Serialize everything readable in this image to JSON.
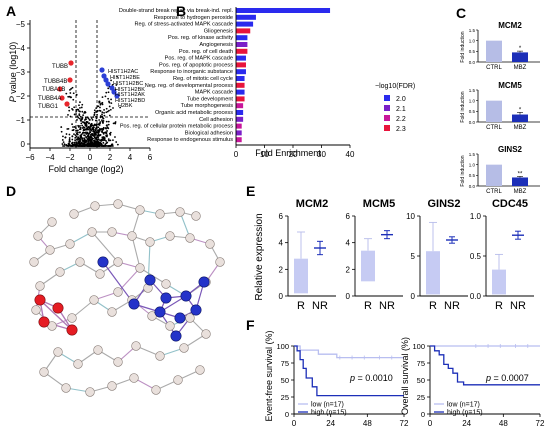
{
  "panels": {
    "A": {
      "letter": "A",
      "ylabel_italic": "P",
      "ylabel_rest": " value (log10)",
      "xlabel": "Fold change (log2)",
      "x_ticks": [
        "−6",
        "−4",
        "−2",
        "0",
        "2",
        "4",
        "6"
      ],
      "y_ticks": [
        "0",
        "−1",
        "−2",
        "−3",
        "−4",
        "−5"
      ],
      "down_labels": [
        "TUBB",
        "TUBB4B",
        "TUBA1B",
        "TUBB4A",
        "TUBG1"
      ],
      "up_labels": [
        "HIST1H2AC",
        "HIST1H2BE",
        "HIST1H2BC",
        "HIST1H2BK",
        "HIST1H2AK",
        "HIST1H2BD",
        "H2BK"
      ],
      "colors": {
        "down": "#e8262b",
        "up": "#2b3fd6",
        "ns": "#000000"
      }
    },
    "B": {
      "letter": "B",
      "xlabel": "Fold  Enrichment",
      "legend_title": "−log10(FDR)",
      "legend": [
        {
          "label": "2.0",
          "color": "#2a2aee"
        },
        {
          "label": "2.1",
          "color": "#7a1fc8"
        },
        {
          "label": "2.2",
          "color": "#c8169a"
        },
        {
          "label": "2.3",
          "color": "#e8143c"
        }
      ]
    },
    "C": {
      "letter": "C",
      "charts": [
        {
          "title": "MCM2",
          "ylabel": "Fold induction",
          "xticks": [
            "CTRL",
            "MBZ"
          ],
          "stars": "*"
        },
        {
          "title": "MCM5",
          "ylabel": "Fold induction",
          "xticks": [
            "CTRL",
            "MBZ"
          ],
          "stars": "*"
        },
        {
          "title": "GINS2",
          "ylabel": "Fold induction",
          "xticks": [
            "CTRL",
            "MBZ"
          ],
          "stars": "**"
        }
      ],
      "colors": {
        "ctrl": "#b6bde6",
        "mbz": "#1c2fb8"
      }
    },
    "D": {
      "letter": "D",
      "colors": {
        "node": "#e9e0dc",
        "red": "#e51c23",
        "blue": "#2433c9"
      }
    },
    "E": {
      "letter": "E",
      "ylabel": "Relative expression",
      "xticks": [
        "R",
        "NR"
      ],
      "colors": {
        "r_box": "#c6cbf3",
        "nr": "#1c2fb8"
      }
    },
    "F": {
      "letter": "F",
      "plots": [
        {
          "ylabel": "Event-free survival (%)",
          "pvalue": "p = 0.0010",
          "legend_low": "low (n=17)",
          "legend_high": "high (n=15)"
        },
        {
          "ylabel": "Overall survival (%)",
          "pvalue": "p = 0.0007",
          "legend_low": "low (n=17)",
          "legend_high": "high (n=15)"
        }
      ],
      "x_ticks": [
        "0",
        "24",
        "48",
        "72"
      ],
      "y_ticks": [
        "0",
        "25",
        "50",
        "75",
        "100"
      ],
      "colors": {
        "low": "#b8bef0",
        "high": "#1c2fb8"
      }
    }
  },
  "chart_data": [
    {
      "id": "B-enrichment",
      "type": "bar",
      "orientation": "horizontal",
      "categories": [
        "Double-strand break repair via break-ind. repl.",
        "Response to hydrogen peroxide",
        "Reg. of stress-activated MAPK cascade",
        "Gliogenesis",
        "Pos. reg. of kinase activity",
        "Angiogenesis",
        "Pos. reg. of cell death",
        "Pos. reg. of MAPK cascade",
        "Pos. reg. of apoptotic process",
        "Response to inorganic substance",
        "Reg. of mitotic cell cycle",
        "Neg. reg. of developmental process",
        "MAPK cascade",
        "Tube development",
        "Tube morphogenesis",
        "Organic acid metabolic process",
        "Cell adhesion",
        "Pos. reg. of cellular protein metabolic process",
        "Biological adhesion",
        "Response to endogenous stimulus"
      ],
      "values": [
        33,
        7,
        6,
        5,
        4,
        4,
        4,
        3.5,
        3.5,
        3.5,
        3,
        3,
        3,
        3,
        2.5,
        2.5,
        2.5,
        2,
        2,
        2
      ],
      "fdr": [
        2.0,
        2.0,
        2.0,
        2.3,
        2.0,
        2.1,
        2.3,
        2.0,
        2.3,
        2.0,
        2.0,
        2.3,
        2.0,
        2.3,
        2.2,
        2.0,
        2.1,
        2.2,
        2.1,
        2.2
      ],
      "xlim": [
        0,
        40
      ],
      "x_ticks": [
        "0",
        "10",
        "20",
        "30",
        "40"
      ],
      "xlabel": "Fold  Enrichment"
    },
    {
      "id": "C-bars",
      "type": "bar",
      "categories": [
        "CTRL",
        "MBZ"
      ],
      "series": [
        {
          "name": "MCM2",
          "values": [
            1.0,
            0.45
          ],
          "errors": [
            0,
            0.06
          ]
        },
        {
          "name": "MCM5",
          "values": [
            1.0,
            0.35
          ],
          "errors": [
            0,
            0.1
          ]
        },
        {
          "name": "GINS2",
          "values": [
            1.0,
            0.4
          ],
          "errors": [
            0,
            0.05
          ]
        }
      ],
      "ylim": [
        0,
        1.5
      ],
      "y_ticks": [
        "0.0",
        "0.5",
        "1.0",
        "1.5"
      ]
    },
    {
      "id": "E-expression",
      "type": "box",
      "categories": [
        "R",
        "NR"
      ],
      "series": [
        {
          "name": "MCM2",
          "ylim": [
            0,
            6
          ],
          "y_ticks": [
            "0",
            "2",
            "4",
            "6"
          ],
          "R": {
            "min": 0.2,
            "q1": 0.2,
            "median": 2.8,
            "q3": 2.8,
            "max": 4.8
          },
          "NR": {
            "mean": 3.6,
            "err": 0.5
          }
        },
        {
          "name": "MCM5",
          "ylim": [
            0,
            6
          ],
          "y_ticks": [
            "0",
            "2",
            "4",
            "6"
          ],
          "R": {
            "min": 1.1,
            "q1": 1.1,
            "median": 3.4,
            "q3": 3.4,
            "max": 4.3
          },
          "NR": {
            "mean": 4.6,
            "err": 0.3
          }
        },
        {
          "name": "GINS2",
          "ylim": [
            0,
            10
          ],
          "y_ticks": [
            "0",
            "5",
            "10"
          ],
          "R": {
            "min": 0.2,
            "q1": 0.2,
            "median": 5.6,
            "q3": 5.6,
            "max": 9.2
          },
          "NR": {
            "mean": 7.0,
            "err": 0.4
          }
        },
        {
          "name": "CDC45",
          "ylim": [
            0,
            1.0
          ],
          "y_ticks": [
            "0.0",
            "0.5",
            "1.0"
          ],
          "R": {
            "min": 0.02,
            "q1": 0.02,
            "median": 0.33,
            "q3": 0.33,
            "max": 0.52
          },
          "NR": {
            "mean": 0.76,
            "err": 0.05
          }
        }
      ]
    },
    {
      "id": "F-survival",
      "type": "line",
      "step": true,
      "xlim": [
        0,
        72
      ],
      "ylim": [
        0,
        100
      ],
      "series_plots": [
        {
          "name": "Event-free survival",
          "low": [
            [
              0,
              100
            ],
            [
              4,
              100
            ],
            [
              4,
              94
            ],
            [
              16,
              94
            ],
            [
              16,
              88
            ],
            [
              28,
              88
            ],
            [
              28,
              83
            ],
            [
              72,
              83
            ]
          ],
          "high": [
            [
              0,
              100
            ],
            [
              2,
              100
            ],
            [
              2,
              93
            ],
            [
              4,
              93
            ],
            [
              4,
              80
            ],
            [
              6,
              80
            ],
            [
              6,
              67
            ],
            [
              8,
              67
            ],
            [
              8,
              53
            ],
            [
              12,
              53
            ],
            [
              12,
              40
            ],
            [
              15,
              40
            ],
            [
              15,
              27
            ],
            [
              72,
              27
            ]
          ]
        },
        {
          "name": "Overall survival",
          "low": [
            [
              0,
              100
            ],
            [
              72,
              100
            ]
          ],
          "high": [
            [
              0,
              100
            ],
            [
              3,
              100
            ],
            [
              3,
              93
            ],
            [
              6,
              93
            ],
            [
              6,
              87
            ],
            [
              9,
              87
            ],
            [
              9,
              73
            ],
            [
              12,
              73
            ],
            [
              12,
              67
            ],
            [
              15,
              67
            ],
            [
              15,
              60
            ],
            [
              18,
              60
            ],
            [
              18,
              47
            ],
            [
              22,
              47
            ],
            [
              22,
              43
            ],
            [
              72,
              43
            ]
          ]
        }
      ]
    }
  ]
}
